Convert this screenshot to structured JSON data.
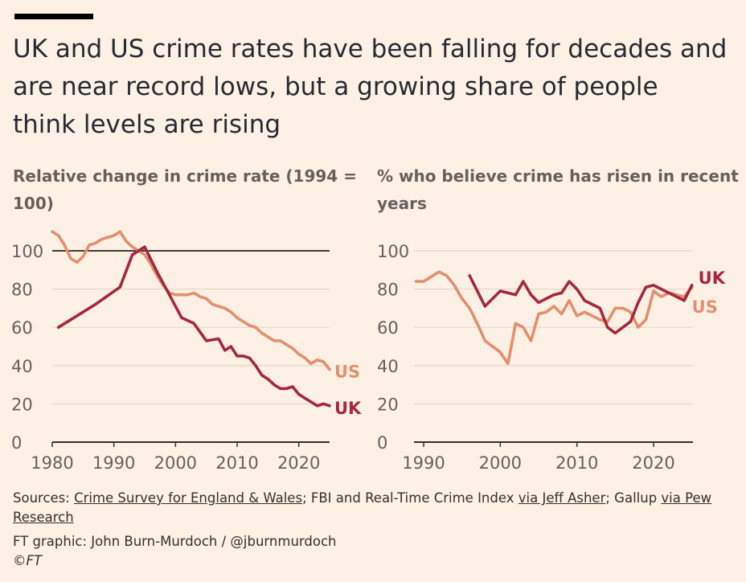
{
  "title": "UK and US crime rates have been falling for decades and are near record lows, but a growing share of people think levels are rising",
  "colors": {
    "background": "#fdf1e5",
    "us": "#e38f6e",
    "uk": "#a5283d",
    "grid": "#e0d3c8",
    "axis": "#33302e",
    "muted": "#66605c"
  },
  "chart_data": [
    {
      "type": "line",
      "title": "Relative change in crime rate (1994 = 100)",
      "xlim": [
        1980,
        2025
      ],
      "ylim": [
        0,
        110
      ],
      "x_ticks": [
        "1980",
        "1990",
        "2000",
        "2010",
        "2020"
      ],
      "y_ticks": [
        "0",
        "20",
        "40",
        "60",
        "80",
        "100"
      ],
      "reference_line": 100,
      "series": [
        {
          "name": "US",
          "label": "US",
          "color": "#e38f6e",
          "x": [
            1980,
            1981,
            1982,
            1983,
            1984,
            1985,
            1986,
            1987,
            1988,
            1989,
            1990,
            1991,
            1992,
            1993,
            1994,
            1995,
            1996,
            1997,
            1998,
            1999,
            2000,
            2001,
            2002,
            2003,
            2004,
            2005,
            2006,
            2007,
            2008,
            2009,
            2010,
            2011,
            2012,
            2013,
            2014,
            2015,
            2016,
            2017,
            2018,
            2019,
            2020,
            2021,
            2022,
            2023,
            2024,
            2025
          ],
          "y": [
            110,
            108,
            103,
            96,
            94,
            97,
            103,
            104,
            106,
            107,
            108,
            110,
            105,
            102,
            100,
            98,
            93,
            87,
            82,
            78,
            77,
            77,
            77,
            78,
            76,
            75,
            72,
            71,
            70,
            68,
            65,
            63,
            61,
            60,
            57,
            55,
            53,
            53,
            51,
            49,
            46,
            44,
            41,
            43,
            42,
            38
          ]
        },
        {
          "name": "UK",
          "label": "UK",
          "color": "#a5283d",
          "x": [
            1981,
            1983,
            1987,
            1991,
            1993,
            1995,
            1997,
            1999,
            2001,
            2003,
            2005,
            2007,
            2008,
            2009,
            2010,
            2011,
            2012,
            2013,
            2014,
            2015,
            2016,
            2017,
            2018,
            2019,
            2020,
            2021,
            2022,
            2023,
            2024,
            2025
          ],
          "y": [
            60,
            64,
            72,
            81,
            98,
            102,
            89,
            77,
            65,
            62,
            53,
            54,
            48,
            50,
            45,
            45,
            44,
            40,
            35,
            33,
            30,
            28,
            28,
            29,
            25,
            23,
            21,
            19,
            20,
            19
          ]
        }
      ]
    },
    {
      "type": "line",
      "title": "% who believe crime has risen in recent years",
      "xlim": [
        1989,
        2025
      ],
      "ylim": [
        0,
        100
      ],
      "x_ticks": [
        "1990",
        "2000",
        "2010",
        "2020"
      ],
      "y_ticks": [
        "0",
        "20",
        "40",
        "60",
        "80",
        "100"
      ],
      "series": [
        {
          "name": "US",
          "label": "US",
          "color": "#e38f6e",
          "x": [
            1989,
            1990,
            1992,
            1993,
            1994,
            1995,
            1996,
            1997,
            1998,
            1999,
            2000,
            2001,
            2002,
            2003,
            2004,
            2005,
            2006,
            2007,
            2008,
            2009,
            2010,
            2011,
            2012,
            2013,
            2014,
            2015,
            2016,
            2017,
            2018,
            2019,
            2020,
            2021,
            2022,
            2023,
            2024,
            2025
          ],
          "y": [
            84,
            84,
            89,
            87,
            82,
            75,
            70,
            62,
            53,
            50,
            47,
            41,
            62,
            60,
            53,
            67,
            68,
            71,
            67,
            74,
            66,
            68,
            66,
            64,
            63,
            70,
            70,
            68,
            60,
            64,
            79,
            76,
            78,
            77,
            76,
            81
          ]
        },
        {
          "name": "UK",
          "label": "UK",
          "color": "#a5283d",
          "x": [
            1996,
            1998,
            2000,
            2002,
            2003,
            2004,
            2005,
            2006,
            2007,
            2008,
            2009,
            2010,
            2011,
            2012,
            2013,
            2014,
            2015,
            2016,
            2017,
            2018,
            2019,
            2020,
            2021,
            2022,
            2023,
            2024,
            2025
          ],
          "y": [
            87,
            71,
            79,
            77,
            84,
            77,
            73,
            75,
            77,
            78,
            84,
            80,
            74,
            72,
            70,
            60,
            57,
            60,
            63,
            73,
            81,
            82,
            80,
            78,
            76,
            74,
            82
          ]
        }
      ]
    }
  ],
  "sources": {
    "prefix": "Sources: ",
    "link1": "Crime Survey for England & Wales",
    "middle1": "; FBI and Real-Time Crime Index ",
    "link2": "via Jeff Asher",
    "middle2": "; Gallup ",
    "link3": "via Pew Research"
  },
  "credit": "FT graphic: John Burn-Murdoch / @jburnmurdoch",
  "copyright": "©FT"
}
